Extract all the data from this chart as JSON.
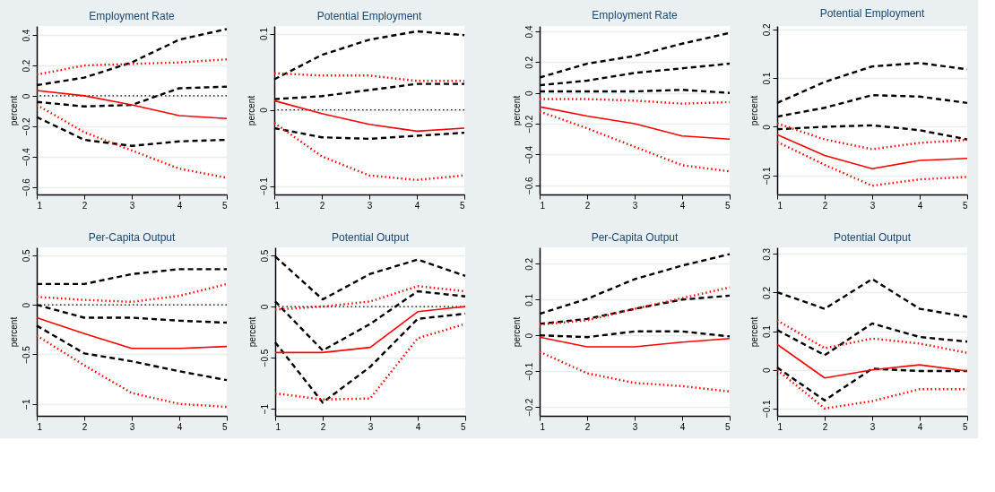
{
  "chart_data": [
    {
      "type": "line",
      "title": "Employment Rate",
      "ylabel": "percent",
      "x": [
        1,
        2,
        3,
        4,
        5
      ],
      "xlim": [
        1,
        5
      ],
      "xticks": [
        1,
        2,
        3,
        4,
        5
      ],
      "ylim": [
        -0.65,
        0.46
      ],
      "yticks": [
        -0.6,
        -0.4,
        -0.2,
        0,
        0.2,
        0.4
      ],
      "grid": "y",
      "ref_lines": [
        {
          "axis": "y",
          "value": 0,
          "color": "#000000",
          "line_style": "dotted"
        }
      ],
      "series": [
        {
          "color": "#ff0000",
          "line_style": "solid",
          "values": [
            0.035,
            0,
            -0.06,
            -0.13,
            -0.15
          ]
        },
        {
          "color": "#ff0000",
          "line_style": "dotted",
          "values": [
            0.14,
            0.2,
            0.21,
            0.22,
            0.24
          ]
        },
        {
          "color": "#ff0000",
          "line_style": "dotted",
          "values": [
            -0.06,
            -0.24,
            -0.36,
            -0.48,
            -0.54
          ]
        },
        {
          "color": "#000000",
          "line_style": "dashed",
          "values": [
            0.07,
            0.12,
            0.22,
            0.37,
            0.44
          ]
        },
        {
          "color": "#000000",
          "line_style": "dashed",
          "values": [
            -0.04,
            -0.07,
            -0.06,
            0.05,
            0.06
          ]
        },
        {
          "color": "#000000",
          "line_style": "dashed",
          "values": [
            -0.14,
            -0.29,
            -0.33,
            -0.3,
            -0.29
          ]
        }
      ]
    },
    {
      "type": "line",
      "title": "Potential Employment",
      "ylabel": "percent",
      "x": [
        1,
        2,
        3,
        4,
        5
      ],
      "xlim": [
        1,
        5
      ],
      "xticks": [
        1,
        2,
        3,
        4,
        5
      ],
      "ylim": [
        -0.111,
        0.11
      ],
      "yticks": [
        -0.1,
        0,
        0.1
      ],
      "grid": "y",
      "ref_lines": [
        {
          "axis": "y",
          "value": 0,
          "color": "#000000",
          "line_style": "dotted"
        }
      ],
      "series": [
        {
          "color": "#ff0000",
          "line_style": "solid",
          "values": [
            0.012,
            -0.005,
            -0.019,
            -0.028,
            -0.024
          ]
        },
        {
          "color": "#ff0000",
          "line_style": "dotted",
          "values": [
            0.048,
            0.045,
            0.045,
            0.038,
            0.038
          ]
        },
        {
          "color": "#ff0000",
          "line_style": "dotted",
          "values": [
            -0.017,
            -0.061,
            -0.086,
            -0.092,
            -0.086
          ]
        },
        {
          "color": "#000000",
          "line_style": "dashed",
          "values": [
            0.04,
            0.072,
            0.092,
            0.103,
            0.098
          ]
        },
        {
          "color": "#000000",
          "line_style": "dashed",
          "values": [
            0.014,
            0.018,
            0.026,
            0.034,
            0.034
          ]
        },
        {
          "color": "#000000",
          "line_style": "dashed",
          "values": [
            -0.024,
            -0.036,
            -0.038,
            -0.034,
            -0.03
          ]
        }
      ]
    },
    {
      "type": "line",
      "title": "Employment Rate",
      "ylabel": "percent",
      "x": [
        1,
        2,
        3,
        4,
        5
      ],
      "xlim": [
        1,
        5
      ],
      "xticks": [
        1,
        2,
        3,
        4,
        5
      ],
      "ylim": [
        -0.66,
        0.435
      ],
      "yticks": [
        -0.6,
        -0.4,
        -0.2,
        0,
        0.2,
        0.4
      ],
      "grid": "y",
      "series": [
        {
          "color": "#ff0000",
          "line_style": "solid",
          "values": [
            -0.09,
            -0.15,
            -0.2,
            -0.28,
            -0.3
          ]
        },
        {
          "color": "#ff0000",
          "line_style": "dotted",
          "values": [
            -0.04,
            -0.04,
            -0.05,
            -0.07,
            -0.06
          ]
        },
        {
          "color": "#ff0000",
          "line_style": "dotted",
          "values": [
            -0.12,
            -0.23,
            -0.35,
            -0.47,
            -0.51
          ]
        },
        {
          "color": "#000000",
          "line_style": "dashed",
          "values": [
            0.1,
            0.19,
            0.24,
            0.32,
            0.39
          ]
        },
        {
          "color": "#000000",
          "line_style": "dashed",
          "values": [
            0.05,
            0.08,
            0.13,
            0.16,
            0.19
          ]
        },
        {
          "color": "#000000",
          "line_style": "dashed",
          "values": [
            0.01,
            0.01,
            0.01,
            0.02,
            0
          ]
        }
      ]
    },
    {
      "type": "line",
      "title": "Potential Employment",
      "ylabel": "percent",
      "x": [
        1,
        2,
        3,
        4,
        5
      ],
      "xlim": [
        1,
        5
      ],
      "xticks": [
        1,
        2,
        3,
        4,
        5
      ],
      "ylim": [
        -0.139,
        0.207
      ],
      "yticks": [
        -0.1,
        0,
        0.1,
        0.2
      ],
      "grid": "y",
      "series": [
        {
          "color": "#ff0000",
          "line_style": "solid",
          "values": [
            -0.016,
            -0.059,
            -0.086,
            -0.069,
            -0.065
          ]
        },
        {
          "color": "#ff0000",
          "line_style": "dotted",
          "values": [
            0.007,
            -0.026,
            -0.046,
            -0.033,
            -0.027
          ]
        },
        {
          "color": "#ff0000",
          "line_style": "dotted",
          "values": [
            -0.031,
            -0.078,
            -0.121,
            -0.108,
            -0.103
          ]
        },
        {
          "color": "#000000",
          "line_style": "dashed",
          "values": [
            0.049,
            0.092,
            0.124,
            0.131,
            0.118
          ]
        },
        {
          "color": "#000000",
          "line_style": "dashed",
          "values": [
            0.021,
            0.039,
            0.065,
            0.062,
            0.049
          ]
        },
        {
          "color": "#000000",
          "line_style": "dashed",
          "values": [
            -0.005,
            0,
            0.003,
            -0.007,
            -0.026
          ]
        }
      ]
    },
    {
      "type": "line",
      "title": "Per-Capita Output",
      "ylabel": "percent",
      "x": [
        1,
        2,
        3,
        4,
        5
      ],
      "xlim": [
        1,
        5
      ],
      "xticks": [
        1,
        2,
        3,
        4,
        5
      ],
      "ylim": [
        -1.12,
        0.58
      ],
      "yticks": [
        -1,
        -0.5,
        0,
        0.5
      ],
      "grid": "y",
      "ref_lines": [
        {
          "axis": "y",
          "value": 0,
          "color": "#000000",
          "line_style": "dotted"
        }
      ],
      "series": [
        {
          "color": "#ff0000",
          "line_style": "solid",
          "values": [
            -0.13,
            -0.29,
            -0.44,
            -0.44,
            -0.42
          ]
        },
        {
          "color": "#ff0000",
          "line_style": "dotted",
          "values": [
            0.08,
            0.05,
            0.03,
            0.09,
            0.21
          ]
        },
        {
          "color": "#ff0000",
          "line_style": "dotted",
          "values": [
            -0.31,
            -0.61,
            -0.89,
            -1.0,
            -1.03
          ]
        },
        {
          "color": "#000000",
          "line_style": "dashed",
          "values": [
            0.21,
            0.21,
            0.31,
            0.36,
            0.36
          ]
        },
        {
          "color": "#000000",
          "line_style": "dashed",
          "values": [
            0,
            -0.13,
            -0.13,
            -0.16,
            -0.18
          ]
        },
        {
          "color": "#000000",
          "line_style": "dashed",
          "values": [
            -0.21,
            -0.49,
            -0.57,
            -0.67,
            -0.76
          ]
        }
      ]
    },
    {
      "type": "line",
      "title": "Potential Output",
      "ylabel": "percent",
      "x": [
        1,
        2,
        3,
        4,
        5
      ],
      "xlim": [
        1,
        5
      ],
      "xticks": [
        1,
        2,
        3,
        4,
        5
      ],
      "ylim": [
        -1.07,
        0.58
      ],
      "yticks": [
        -1,
        -0.5,
        0,
        0.5
      ],
      "grid": "y",
      "ref_lines": [
        {
          "axis": "y",
          "value": 0,
          "color": "#000000",
          "line_style": "dotted"
        }
      ],
      "series": [
        {
          "color": "#ff0000",
          "line_style": "solid",
          "values": [
            -0.45,
            -0.45,
            -0.4,
            -0.05,
            0
          ]
        },
        {
          "color": "#ff0000",
          "line_style": "dotted",
          "values": [
            -0.03,
            0,
            0.05,
            0.2,
            0.15
          ]
        },
        {
          "color": "#ff0000",
          "line_style": "dotted",
          "values": [
            -0.85,
            -0.91,
            -0.9,
            -0.31,
            -0.17
          ]
        },
        {
          "color": "#000000",
          "line_style": "dashed",
          "values": [
            0.49,
            0.07,
            0.32,
            0.46,
            0.3
          ]
        },
        {
          "color": "#000000",
          "line_style": "dashed",
          "values": [
            0.05,
            -0.43,
            -0.17,
            0.15,
            0.1
          ]
        },
        {
          "color": "#000000",
          "line_style": "dashed",
          "values": [
            -0.35,
            -0.94,
            -0.59,
            -0.12,
            -0.07
          ]
        }
      ]
    },
    {
      "type": "line",
      "title": "Per-Capita Output",
      "ylabel": "percent",
      "x": [
        1,
        2,
        3,
        4,
        5
      ],
      "xlim": [
        1,
        5
      ],
      "xticks": [
        1,
        2,
        3,
        4,
        5
      ],
      "ylim": [
        -0.225,
        0.246
      ],
      "yticks": [
        -0.2,
        -0.1,
        0,
        0.1,
        0.2
      ],
      "grid": "y",
      "series": [
        {
          "color": "#ff0000",
          "line_style": "solid",
          "values": [
            -0.005,
            -0.032,
            -0.032,
            -0.019,
            -0.009
          ]
        },
        {
          "color": "#ff0000",
          "line_style": "dotted",
          "values": [
            0.03,
            0.042,
            0.074,
            0.104,
            0.134
          ]
        },
        {
          "color": "#ff0000",
          "line_style": "dotted",
          "values": [
            -0.046,
            -0.106,
            -0.133,
            -0.142,
            -0.157
          ]
        },
        {
          "color": "#000000",
          "line_style": "dashed",
          "values": [
            0.06,
            0.102,
            0.157,
            0.195,
            0.227
          ]
        },
        {
          "color": "#000000",
          "line_style": "dashed",
          "values": [
            0.032,
            0.046,
            0.074,
            0.1,
            0.111
          ]
        },
        {
          "color": "#000000",
          "line_style": "dashed",
          "values": [
            0,
            -0.005,
            0.011,
            0.011,
            -0.003
          ]
        }
      ]
    },
    {
      "type": "line",
      "title": "Potential Output",
      "ylabel": "percent",
      "x": [
        1,
        2,
        3,
        4,
        5
      ],
      "xlim": [
        1,
        5
      ],
      "xticks": [
        1,
        2,
        3,
        4,
        5
      ],
      "ylim": [
        -0.119,
        0.317
      ],
      "yticks": [
        -0.1,
        0,
        0.1,
        0.2,
        0.3
      ],
      "grid": "y",
      "series": [
        {
          "color": "#ff0000",
          "line_style": "solid",
          "values": [
            0.066,
            -0.021,
            0,
            0.013,
            -0.003
          ]
        },
        {
          "color": "#ff0000",
          "line_style": "dotted",
          "values": [
            0.128,
            0.056,
            0.081,
            0.068,
            0.044
          ]
        },
        {
          "color": "#ff0000",
          "line_style": "dotted",
          "values": [
            0,
            -0.1,
            -0.081,
            -0.05,
            -0.05
          ]
        },
        {
          "color": "#000000",
          "line_style": "dashed",
          "values": [
            0.201,
            0.158,
            0.235,
            0.158,
            0.137
          ]
        },
        {
          "color": "#000000",
          "line_style": "dashed",
          "values": [
            0.103,
            0.038,
            0.12,
            0.085,
            0.073
          ]
        },
        {
          "color": "#000000",
          "line_style": "dashed",
          "values": [
            0.006,
            -0.079,
            0.003,
            -0.003,
            -0.003
          ]
        }
      ]
    }
  ]
}
